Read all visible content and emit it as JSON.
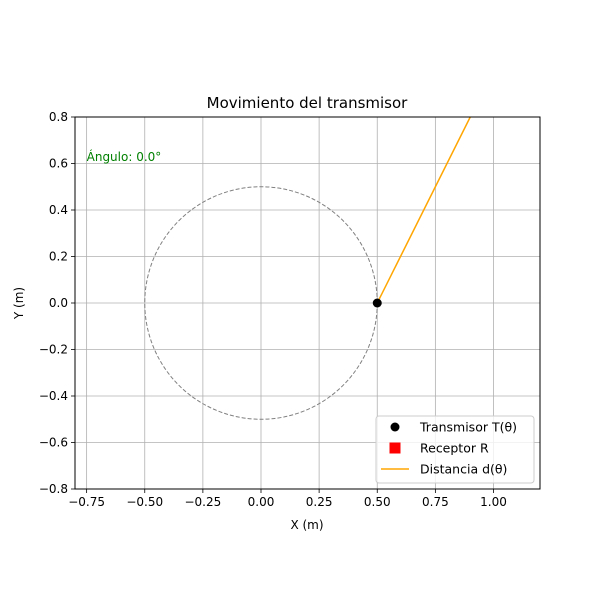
{
  "chart_data": {
    "type": "scatter",
    "title": "Movimiento del transmisor",
    "xlabel": "X (m)",
    "ylabel": "Y (m)",
    "xlim": [
      -0.8,
      1.2
    ],
    "ylim": [
      -0.8,
      0.8
    ],
    "grid": true,
    "equal_aspect": false,
    "xticks": [
      -0.75,
      -0.5,
      -0.25,
      0.0,
      0.25,
      0.5,
      0.75,
      1.0
    ],
    "xtick_labels": [
      "−0.75",
      "−0.50",
      "−0.25",
      "0.00",
      "0.25",
      "0.50",
      "0.75",
      "1.00"
    ],
    "yticks": [
      -0.8,
      -0.6,
      -0.4,
      -0.2,
      0.0,
      0.2,
      0.4,
      0.6,
      0.8
    ],
    "ytick_labels": [
      "−0.8",
      "−0.6",
      "−0.4",
      "−0.2",
      "0.0",
      "0.2",
      "0.4",
      "0.6",
      "0.8"
    ],
    "circle": {
      "center": [
        0,
        0
      ],
      "radius": 0.5,
      "color": "#808080",
      "style": "dashed"
    },
    "transmitter": {
      "x": 0.5,
      "y": 0.0,
      "color": "#000000",
      "marker": "circle"
    },
    "receptor": {
      "color": "#ff0000",
      "marker": "square"
    },
    "distance_line": {
      "x": [
        0.5,
        0.9
      ],
      "y": [
        0.0,
        0.8
      ],
      "color": "#ffa500"
    },
    "annotation": {
      "text": "Ángulo: 0.0°",
      "x": -0.75,
      "y": 0.61,
      "color": "#008000"
    },
    "legend": {
      "position": "lower-right",
      "entries": [
        {
          "label": "Transmisor T(θ)",
          "marker": "circle",
          "color": "#000000"
        },
        {
          "label": "Receptor R",
          "marker": "square",
          "color": "#ff0000"
        },
        {
          "label": "Distancia d(θ)",
          "marker": "line",
          "color": "#ffa500"
        }
      ]
    }
  }
}
